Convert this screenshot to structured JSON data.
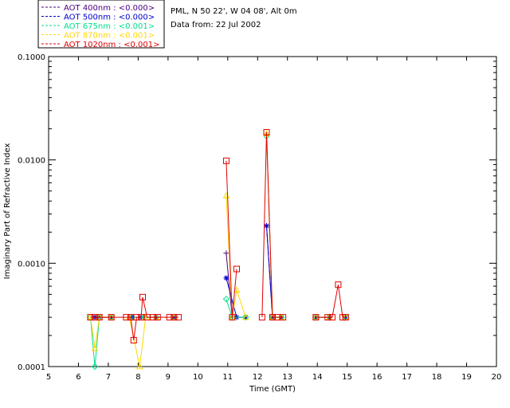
{
  "chart_data": {
    "type": "line",
    "info_lines": [
      "PML, N 50 22', W 04 08', Alt 0m",
      "Data from: 22 Jul 2002"
    ],
    "xlabel": "Time (GMT)",
    "ylabel": "Imaginary Part of Refractive Index",
    "xlim": [
      5,
      20
    ],
    "ylim": [
      0.0001,
      0.1
    ],
    "y_scale": "log",
    "x_ticks": [
      5,
      6,
      7,
      8,
      9,
      10,
      11,
      12,
      13,
      14,
      15,
      16,
      17,
      18,
      19,
      20
    ],
    "y_ticks": [
      {
        "value": 0.0001,
        "label": "0.0001"
      },
      {
        "value": 0.001,
        "label": "0.0010"
      },
      {
        "value": 0.01,
        "label": "0.0100"
      },
      {
        "value": 0.1,
        "label": "0.1000"
      }
    ],
    "legend_position": "top-left, above plot",
    "series": [
      {
        "name": "AOT  400nm : <0.000>",
        "color": "#4b0082",
        "marker": "plus",
        "points": [
          [
            6.55,
            0.0003
          ],
          [
            6.7,
            0.0003
          ],
          [
            7.1,
            0.0003
          ],
          [
            7.8,
            0.0003
          ],
          [
            8.2,
            0.0003
          ],
          [
            8.6,
            0.0003
          ],
          [
            9.2,
            0.0003
          ],
          [
            10.95,
            0.00125
          ],
          [
            11.15,
            0.0003
          ],
          [
            11.6,
            0.0003
          ],
          [
            12.3,
            0.0023
          ],
          [
            12.5,
            0.0003
          ],
          [
            12.8,
            0.0003
          ],
          [
            13.95,
            0.0003
          ],
          [
            14.4,
            0.0003
          ],
          [
            14.95,
            0.0003
          ]
        ]
      },
      {
        "name": "AOT  500nm : <0.000>",
        "color": "#0000cd",
        "marker": "asterisk",
        "points": [
          [
            6.55,
            0.0003
          ],
          [
            6.7,
            0.0003
          ],
          [
            7.1,
            0.0003
          ],
          [
            7.8,
            0.0003
          ],
          [
            8.1,
            0.0003
          ],
          [
            8.6,
            0.0003
          ],
          [
            9.2,
            0.0003
          ],
          [
            10.95,
            0.00072
          ],
          [
            11.3,
            0.0003
          ],
          [
            11.6,
            0.0003
          ],
          [
            12.3,
            0.0023
          ],
          [
            12.5,
            0.0003
          ],
          [
            12.8,
            0.0003
          ],
          [
            13.95,
            0.0003
          ],
          [
            14.4,
            0.0003
          ],
          [
            14.95,
            0.0003
          ]
        ]
      },
      {
        "name": "AOT  675nm : <0.001>",
        "color": "#00e08c",
        "marker": "diamond",
        "points": [
          [
            6.4,
            0.0003
          ],
          [
            6.55,
            0.0001
          ],
          [
            6.7,
            0.0003
          ],
          [
            7.1,
            0.0003
          ],
          [
            7.8,
            0.0003
          ],
          [
            8.2,
            0.0003
          ],
          [
            8.6,
            0.0003
          ],
          [
            9.2,
            0.0003
          ],
          [
            10.95,
            0.00045
          ],
          [
            11.15,
            0.0003
          ],
          [
            11.6,
            0.0003
          ],
          [
            12.3,
            0.017
          ],
          [
            12.5,
            0.0003
          ],
          [
            12.8,
            0.0003
          ],
          [
            13.95,
            0.0003
          ],
          [
            14.4,
            0.0003
          ],
          [
            14.95,
            0.0003
          ]
        ]
      },
      {
        "name": "AOT  870nm : <0.001>",
        "color": "#ffd700",
        "marker": "triangle",
        "points": [
          [
            6.4,
            0.0003
          ],
          [
            6.55,
            0.00015
          ],
          [
            6.7,
            0.0003
          ],
          [
            7.1,
            0.0003
          ],
          [
            7.7,
            0.0003
          ],
          [
            8.05,
            0.0001
          ],
          [
            8.25,
            0.0003
          ],
          [
            8.6,
            0.0003
          ],
          [
            9.2,
            0.0003
          ],
          [
            10.95,
            0.0045
          ],
          [
            11.15,
            0.0003
          ],
          [
            11.3,
            0.00055
          ],
          [
            11.6,
            0.0003
          ],
          [
            12.3,
            0.018
          ],
          [
            12.5,
            0.0003
          ],
          [
            12.8,
            0.0003
          ],
          [
            13.95,
            0.0003
          ],
          [
            14.4,
            0.0003
          ],
          [
            14.95,
            0.0003
          ]
        ]
      },
      {
        "name": "AOT 1020nm : <0.001>",
        "color": "#e00000",
        "marker": "square",
        "points": [
          [
            6.4,
            0.0003
          ],
          [
            6.55,
            0.0003
          ],
          [
            6.7,
            0.0003
          ],
          [
            7.1,
            0.0003
          ],
          [
            7.6,
            0.0003
          ],
          [
            7.75,
            0.0003
          ],
          [
            7.85,
            0.00018
          ],
          [
            7.95,
            0.0003
          ],
          [
            8.1,
            0.0003
          ],
          [
            8.15,
            0.00047
          ],
          [
            8.3,
            0.0003
          ],
          [
            8.5,
            0.0003
          ],
          [
            8.65,
            0.0003
          ],
          [
            9.05,
            0.0003
          ],
          [
            9.2,
            0.0003
          ],
          [
            9.35,
            0.0003
          ],
          [
            10.95,
            0.0098
          ],
          [
            11.15,
            0.0003
          ],
          [
            11.3,
            0.00088
          ],
          [
            12.15,
            0.0003
          ],
          [
            12.3,
            0.0185
          ],
          [
            12.5,
            0.0003
          ],
          [
            12.65,
            0.0003
          ],
          [
            12.85,
            0.0003
          ],
          [
            13.95,
            0.0003
          ],
          [
            14.35,
            0.0003
          ],
          [
            14.5,
            0.0003
          ],
          [
            14.7,
            0.00062
          ],
          [
            14.85,
            0.0003
          ],
          [
            14.95,
            0.0003
          ]
        ]
      }
    ]
  }
}
